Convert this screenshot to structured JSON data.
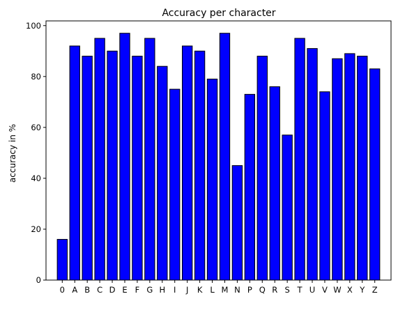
{
  "chart_data": {
    "type": "bar",
    "title": "Accuracy per character",
    "xlabel": "",
    "ylabel": "accuracy in %",
    "categories": [
      "0",
      "A",
      "B",
      "C",
      "D",
      "E",
      "F",
      "G",
      "H",
      "I",
      "J",
      "K",
      "L",
      "M",
      "N",
      "P",
      "Q",
      "R",
      "S",
      "T",
      "U",
      "V",
      "W",
      "X",
      "Y",
      "Z"
    ],
    "values": [
      16,
      92,
      88,
      95,
      90,
      97,
      88,
      95,
      84,
      75,
      92,
      90,
      79,
      97,
      45,
      73,
      88,
      76,
      57,
      95,
      91,
      74,
      87,
      89,
      88,
      83
    ],
    "ylim": [
      0,
      101.85
    ],
    "yticks": [
      0,
      20,
      40,
      60,
      80,
      100
    ],
    "grid": false,
    "colors": {
      "bar_fill": "#0000ff",
      "bar_edge": "#000000"
    }
  }
}
